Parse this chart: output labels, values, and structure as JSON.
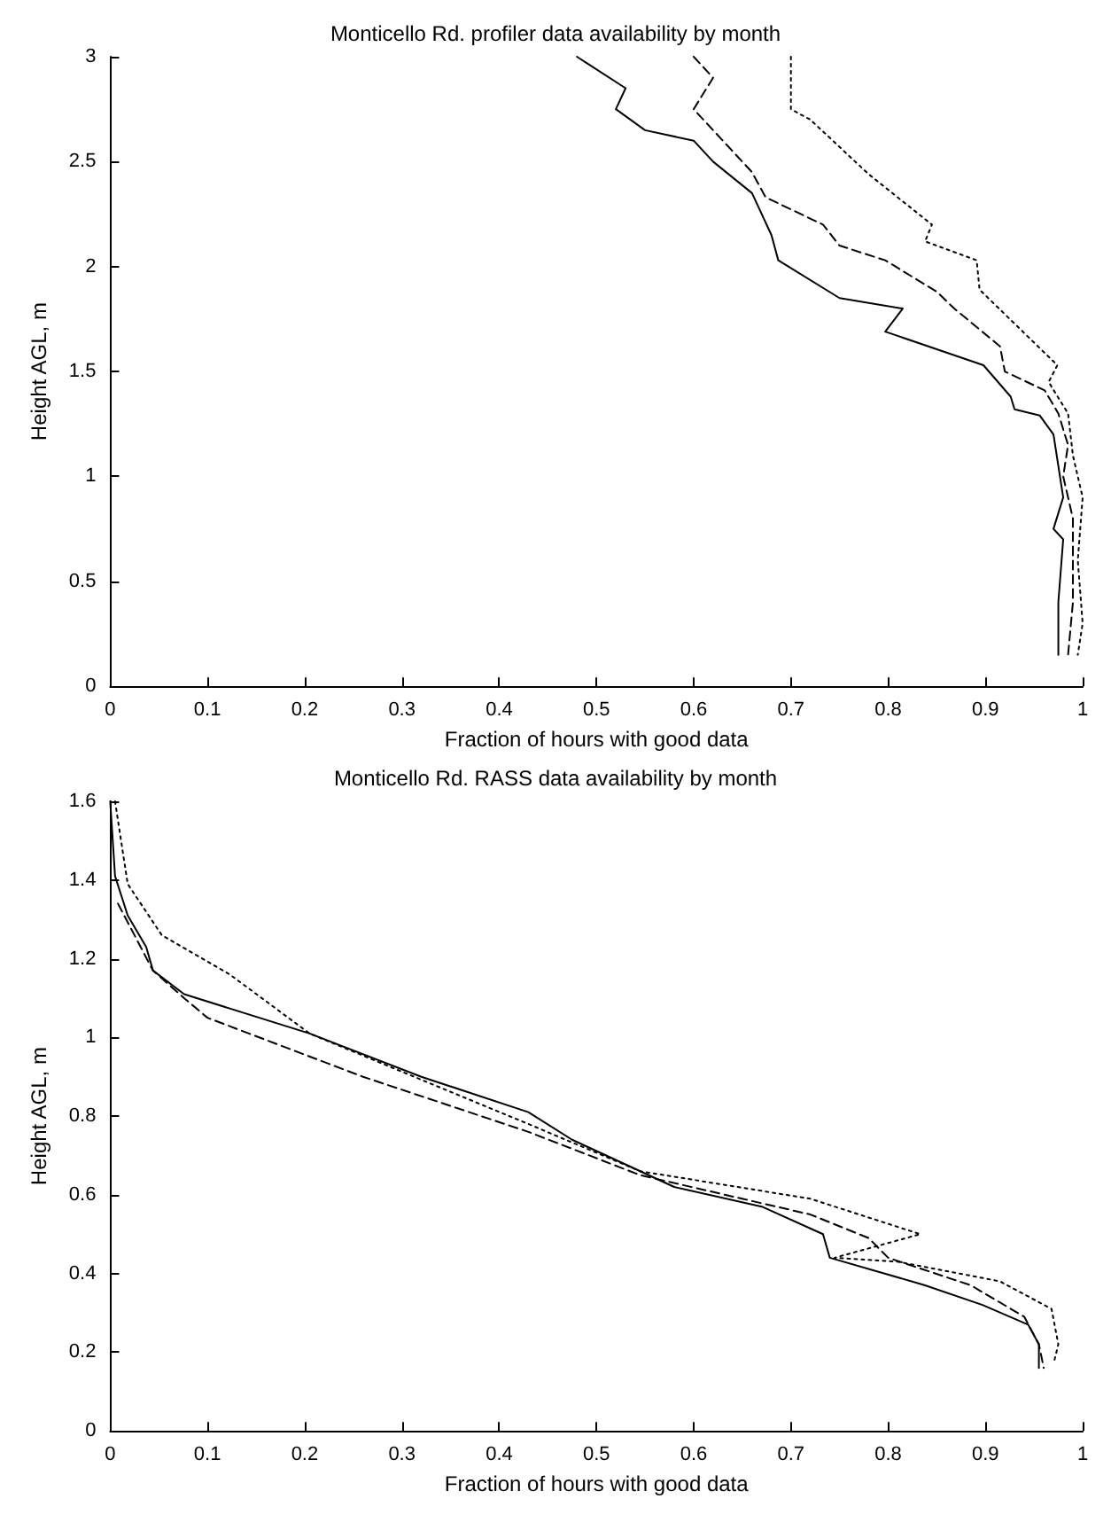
{
  "chart_data": [
    {
      "type": "line",
      "title": "Monticello Rd. profiler data availability by month",
      "xlabel": "Fraction of hours with good data",
      "ylabel": "Height AGL, m",
      "xlim": [
        0,
        1
      ],
      "ylim": [
        0,
        3
      ],
      "xticks": [
        0,
        0.1,
        0.2,
        0.3,
        0.4,
        0.5,
        0.6,
        0.7,
        0.8,
        0.9,
        1
      ],
      "yticks": [
        0,
        0.5,
        1,
        1.5,
        2,
        2.5,
        3
      ],
      "grid": false,
      "marker": "none",
      "series": [
        {
          "color": "#000000",
          "line_style": "solid",
          "x": [
            0.48,
            0.49,
            0.53,
            0.52,
            0.55,
            0.6,
            0.62,
            0.66,
            0.68,
            0.687,
            0.75,
            0.815,
            0.797,
            0.898,
            0.926,
            0.93,
            0.956,
            0.97,
            0.975,
            0.98,
            0.97,
            0.98,
            0.975,
            0.975
          ],
          "values": [
            3,
            2.97,
            2.85,
            2.75,
            2.65,
            2.6,
            2.5,
            2.35,
            2.15,
            2.03,
            1.85,
            1.8,
            1.69,
            1.53,
            1.38,
            1.32,
            1.29,
            1.2,
            1.05,
            0.9,
            0.75,
            0.7,
            0.4,
            0.15
          ]
        },
        {
          "color": "#000000",
          "line_style": "dashed",
          "x": [
            0.6,
            0.62,
            0.6,
            0.63,
            0.66,
            0.674,
            0.733,
            0.75,
            0.797,
            0.85,
            0.868,
            0.915,
            0.92,
            0.961,
            0.975,
            0.985,
            0.98,
            0.99,
            0.99,
            0.985
          ],
          "values": [
            3,
            2.9,
            2.75,
            2.6,
            2.45,
            2.33,
            2.2,
            2.1,
            2.03,
            1.88,
            1.8,
            1.62,
            1.5,
            1.41,
            1.3,
            1.15,
            1.0,
            0.8,
            0.4,
            0.15
          ]
        },
        {
          "color": "#000000",
          "line_style": "dotted",
          "x": [
            0.7,
            0.7,
            0.72,
            0.78,
            0.845,
            0.838,
            0.891,
            0.894,
            0.974,
            0.965,
            0.985,
            0.99,
            1.0,
            0.995,
            1.0,
            0.995
          ],
          "values": [
            3,
            2.75,
            2.7,
            2.44,
            2.2,
            2.12,
            2.03,
            1.89,
            1.53,
            1.45,
            1.3,
            1.1,
            0.9,
            0.6,
            0.3,
            0.15
          ]
        }
      ]
    },
    {
      "type": "line",
      "title": "Monticello Rd. RASS data availability by month",
      "xlabel": "Fraction of hours with good data",
      "ylabel": "Height AGL, m",
      "xlim": [
        0,
        1
      ],
      "ylim": [
        0,
        1.6
      ],
      "xticks": [
        0,
        0.1,
        0.2,
        0.3,
        0.4,
        0.5,
        0.6,
        0.7,
        0.8,
        0.9,
        1
      ],
      "yticks": [
        0,
        0.2,
        0.4,
        0.6,
        0.8,
        1,
        1.2,
        1.4,
        1.6
      ],
      "grid": false,
      "marker": "none",
      "series": [
        {
          "color": "#000000",
          "line_style": "solid",
          "x": [
            0,
            0.005,
            0.018,
            0.037,
            0.044,
            0.076,
            0.205,
            0.32,
            0.43,
            0.475,
            0.58,
            0.67,
            0.733,
            0.74,
            0.838,
            0.897,
            0.944,
            0.955,
            0.955
          ],
          "values": [
            1.6,
            1.41,
            1.31,
            1.23,
            1.17,
            1.11,
            1.01,
            0.9,
            0.81,
            0.74,
            0.62,
            0.57,
            0.5,
            0.44,
            0.37,
            0.32,
            0.27,
            0.22,
            0.16
          ]
        },
        {
          "color": "#000000",
          "line_style": "dashed",
          "x": [
            0.008,
            0.044,
            0.076,
            0.1,
            0.26,
            0.43,
            0.545,
            0.72,
            0.78,
            0.8,
            0.885,
            0.94,
            0.955,
            0.96
          ],
          "values": [
            1.34,
            1.17,
            1.1,
            1.05,
            0.9,
            0.76,
            0.65,
            0.55,
            0.49,
            0.44,
            0.37,
            0.29,
            0.22,
            0.16
          ]
        },
        {
          "color": "#000000",
          "line_style": "dotted",
          "x": [
            0.005,
            0.018,
            0.053,
            0.123,
            0.205,
            0.43,
            0.545,
            0.72,
            0.833,
            0.745,
            0.81,
            0.915,
            0.968,
            0.975,
            0.97
          ],
          "values": [
            1.6,
            1.39,
            1.26,
            1.16,
            1.01,
            0.78,
            0.66,
            0.59,
            0.5,
            0.44,
            0.43,
            0.38,
            0.31,
            0.22,
            0.17
          ]
        }
      ]
    }
  ]
}
